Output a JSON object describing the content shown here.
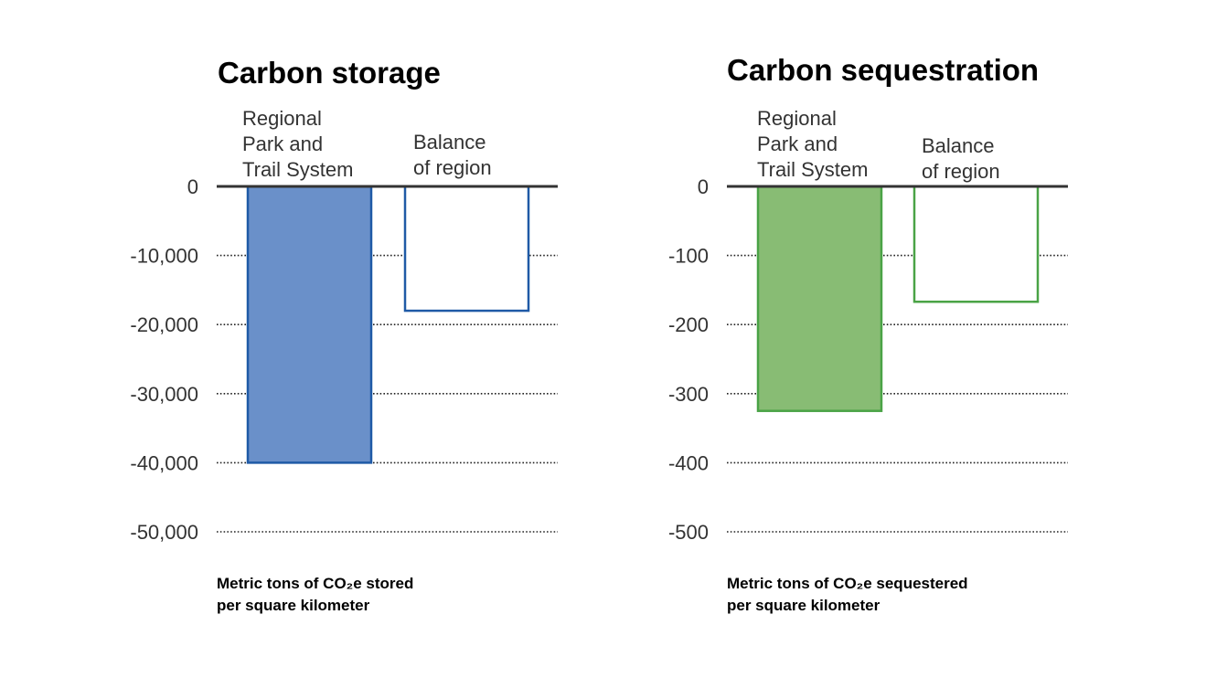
{
  "chart_data": [
    {
      "type": "bar",
      "title": "Carbon storage",
      "categories": [
        "Regional Park and Trail System",
        "Balance of region"
      ],
      "category_label_lines": [
        [
          "Regional",
          "Park and",
          "Trail System"
        ],
        [
          "Balance",
          "of region"
        ]
      ],
      "values": [
        -40000,
        -18000
      ],
      "bar_styles": [
        "filled",
        "outline"
      ],
      "ylim": [
        -50000,
        0
      ],
      "yticks": [
        0,
        -10000,
        -20000,
        -30000,
        -40000,
        -50000
      ],
      "ytick_labels": [
        "0",
        "-10,000",
        "-20,000",
        "-30,000",
        "-40,000",
        "-50,000"
      ],
      "grid": true,
      "note_lines": [
        "Metric tons of CO₂e stored",
        "per square kilometer"
      ],
      "colors": {
        "fill": "#6a90c9",
        "stroke": "#1f5aa6"
      }
    },
    {
      "type": "bar",
      "title": "Carbon sequestration",
      "categories": [
        "Regional Park and Trail System",
        "Balance of region"
      ],
      "category_label_lines": [
        [
          "Regional",
          "Park and",
          "Trail System"
        ],
        [
          "Balance",
          "of region"
        ]
      ],
      "values": [
        -325,
        -167
      ],
      "bar_styles": [
        "filled",
        "outline"
      ],
      "ylim": [
        -500,
        0
      ],
      "yticks": [
        0,
        -100,
        -200,
        -300,
        -400,
        -500
      ],
      "ytick_labels": [
        "0",
        "-100",
        "-200",
        "-300",
        "-400",
        "-500"
      ],
      "grid": true,
      "note_lines": [
        "Metric tons of CO₂e sequestered",
        "per square kilometer"
      ],
      "colors": {
        "fill": "#88bc74",
        "stroke": "#4aa346"
      }
    }
  ]
}
